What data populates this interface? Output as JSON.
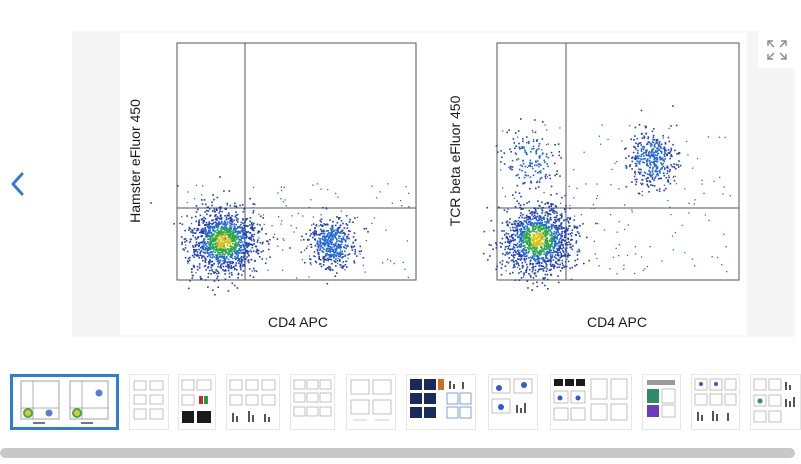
{
  "viewer": {
    "prev_icon": "chevron-left-icon",
    "expand_icon": "expand-arrows-icon",
    "plots": [
      {
        "ylabel": "Hamster eFluor 450",
        "xlabel": "CD4 APC"
      },
      {
        "ylabel": "TCR beta eFluor 450",
        "xlabel": "CD4 APC"
      }
    ]
  },
  "thumbnails": {
    "count": 12,
    "active_index": 0,
    "active_color": "#2d7fd3"
  },
  "colors": {
    "accent": "#2d7fd3",
    "chevron": "#2d7fd3",
    "scrollbar": "#c8c8c8"
  }
}
